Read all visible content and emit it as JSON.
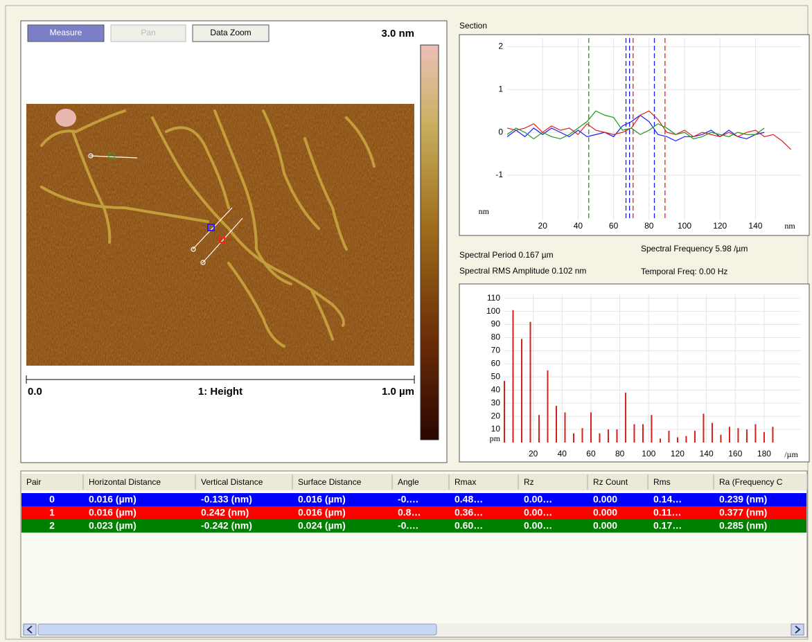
{
  "toolbar": {
    "buttons": [
      "Measure",
      "Pan",
      "Data Zoom"
    ]
  },
  "image": {
    "color_scale_max": "3.0 nm",
    "axis_start": "0.0",
    "channel": "1: Height",
    "axis_end": "1.0 µm"
  },
  "section": {
    "type": "line",
    "title": "Section",
    "y_unit": "nm",
    "x_unit": "nm",
    "x": [
      0,
      5,
      10,
      15,
      20,
      25,
      30,
      35,
      40,
      45,
      50,
      55,
      60,
      65,
      70,
      75,
      80,
      85,
      90,
      95,
      100,
      105,
      110,
      115,
      120,
      125,
      130,
      135,
      140,
      145,
      150,
      155,
      160
    ],
    "series": [
      {
        "color": "#1a1aff",
        "values": [
          -0.1,
          0.05,
          -0.1,
          0.1,
          -0.05,
          0.1,
          0,
          -0.1,
          0.05,
          -0.1,
          -0.05,
          0,
          -0.1,
          0.15,
          0.25,
          0.4,
          0.25,
          -0.05,
          -0.1,
          -0.2,
          -0.1,
          -0.1,
          -0.05,
          0.05,
          -0.1,
          0.05,
          -0.1,
          -0.15,
          -0.05,
          0,
          null,
          null,
          null
        ]
      },
      {
        "color": "#e02020",
        "values": [
          0.1,
          0.05,
          0.1,
          0.2,
          0,
          0.15,
          0.05,
          0.1,
          -0.05,
          0.2,
          0.05,
          0,
          -0.05,
          0,
          0.1,
          0.4,
          0.5,
          0.3,
          0,
          -0.05,
          0.05,
          -0.1,
          0,
          -0.05,
          -0.1,
          0,
          -0.1,
          0,
          0.05,
          -0.1,
          -0.05,
          -0.2,
          -0.4
        ]
      },
      {
        "color": "#1a9a1a",
        "values": [
          -0.05,
          0.1,
          0,
          -0.15,
          0,
          -0.1,
          -0.15,
          -0.05,
          0.1,
          0.25,
          0.5,
          0.4,
          0.35,
          0.05,
          0.1,
          -0.05,
          0.05,
          0.2,
          0.1,
          -0.05,
          0,
          -0.15,
          -0.1,
          0,
          -0.05,
          -0.1,
          0,
          -0.05,
          -0.05,
          0.1,
          null,
          null,
          null
        ]
      }
    ],
    "cursors": [
      {
        "x": 46,
        "color": "#1a9a1a"
      },
      {
        "x": 67,
        "color": "#1a1aff"
      },
      {
        "x": 69,
        "color": "#1a1aff"
      },
      {
        "x": 71,
        "color": "#e02020"
      },
      {
        "x": 83,
        "color": "#1a1aff"
      },
      {
        "x": 89,
        "color": "#e02020"
      }
    ],
    "xlim": [
      0,
      166
    ],
    "ylim": [
      -2.05,
      2.2
    ],
    "xticks": [
      20,
      40,
      60,
      80,
      100,
      120,
      140
    ],
    "yticks": [
      -1,
      0,
      1,
      2
    ],
    "grid": true
  },
  "spectral_info": {
    "period": "Spectral Period 0.167 µm",
    "frequency": "Spectral Frequency 5.98 /µm",
    "rms_amplitude": "Spectral RMS Amplitude 0.102 nm",
    "temporal_freq": "Temporal Freq: 0.00 Hz"
  },
  "spectrum": {
    "type": "bar",
    "y_unit": "pm",
    "x_unit": "/µm",
    "color": "#d02020",
    "x": [
      0,
      6,
      12,
      18,
      24,
      30,
      36,
      42,
      48,
      54,
      60,
      66,
      72,
      78,
      84,
      90,
      96,
      102,
      108,
      114,
      120,
      126,
      132,
      138,
      144,
      150,
      156,
      162,
      168,
      174,
      180,
      186
    ],
    "values": [
      47,
      101,
      79,
      92,
      21,
      55,
      28,
      23,
      7,
      11,
      23,
      7,
      10,
      10,
      38,
      14,
      14,
      21,
      3,
      9,
      4,
      5,
      9,
      22,
      15,
      6,
      12,
      11,
      10,
      14,
      8,
      12
    ],
    "xlim": [
      0,
      205
    ],
    "ylim": [
      0,
      113
    ],
    "xticks": [
      20,
      40,
      60,
      80,
      100,
      120,
      140,
      160,
      180
    ],
    "yticks": [
      10,
      20,
      30,
      40,
      50,
      60,
      70,
      80,
      90,
      100,
      110
    ],
    "grid": true
  },
  "table": {
    "columns": [
      "Pair",
      "Horizontal Distance",
      "Vertical Distance",
      "Surface Distance",
      "Angle",
      "Rmax",
      "Rz",
      "Rz Count",
      "Rms",
      "Ra (Frequency C"
    ],
    "row_colors": [
      "#0000ff",
      "#ff0000",
      "#008000"
    ],
    "rows": [
      [
        "0",
        "0.016 (µm)",
        "-0.133 (nm)",
        "0.016 (µm)",
        "-0.…",
        "0.48…",
        "0.00…",
        "0.000",
        "0.14…",
        "0.239 (nm)"
      ],
      [
        "1",
        "0.016 (µm)",
        "0.242 (nm)",
        "0.016 (µm)",
        "0.8…",
        "0.36…",
        "0.00…",
        "0.000",
        "0.11…",
        "0.377 (nm)"
      ],
      [
        "2",
        "0.023 (µm)",
        "-0.242 (nm)",
        "0.024 (µm)",
        "-0.…",
        "0.60…",
        "0.00…",
        "0.000",
        "0.17…",
        "0.285 (nm)"
      ]
    ]
  }
}
